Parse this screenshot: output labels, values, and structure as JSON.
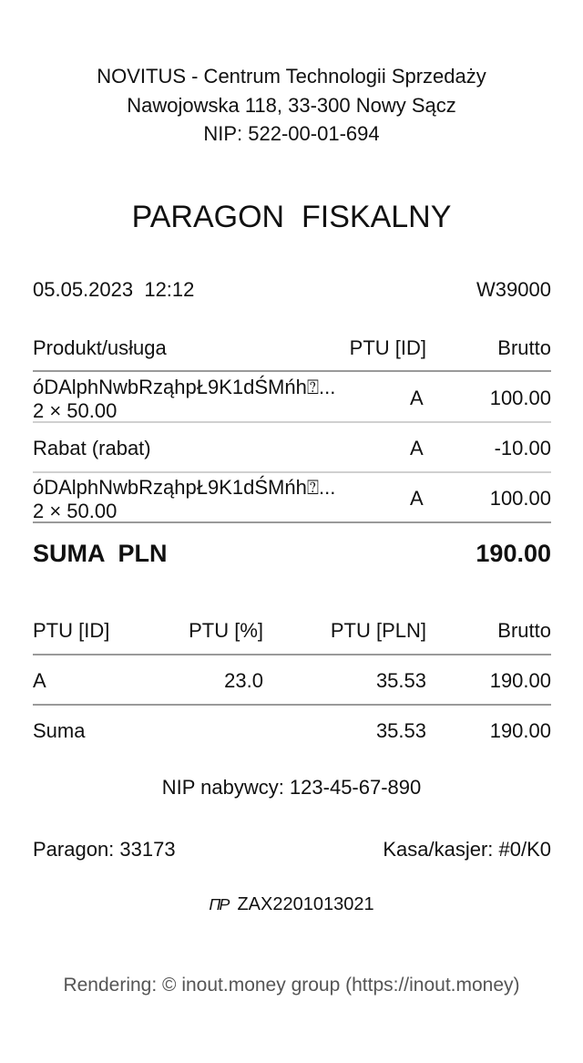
{
  "header": {
    "line1": "NOVITUS - Centrum Technologii Sprzedaży",
    "line2": "Nawojowska 118, 33-300 Nowy Sącz",
    "line3": "NIP: 522-00-01-694"
  },
  "title": "PARAGON  FISKALNY",
  "datetime": "05.05.2023  12:12",
  "receipt_code": "W39000",
  "items_table": {
    "headers": [
      "Produkt/usługa",
      "PTU [ID]",
      "Brutto"
    ],
    "rows": [
      {
        "name": "óDAlphNwbRząhpŁ9K1dŚMńh⍰...",
        "qty": "2 × 50.00",
        "ptu": "A",
        "brutto": "100.00"
      },
      {
        "name": "Rabat (rabat)",
        "ptu": "A",
        "brutto": "-10.00"
      },
      {
        "name": "óDAlphNwbRząhpŁ9K1dŚMńh⍰...",
        "qty": "2 × 50.00",
        "ptu": "A",
        "brutto": "100.00"
      }
    ]
  },
  "total": {
    "label": "SUMA  PLN",
    "value": "190.00"
  },
  "tax_table": {
    "headers": [
      "PTU [ID]",
      "PTU [%]",
      "PTU [PLN]",
      "Brutto"
    ],
    "rows": [
      [
        "A",
        "23.0",
        "35.53",
        "190.00"
      ],
      [
        "Suma",
        "",
        "35.53",
        "190.00"
      ]
    ]
  },
  "buyer_nip": "NIP nabywcy: 123-45-67-890",
  "receipt_number": "Paragon: 33173",
  "cashier": "Kasa/kasjer: #0/K0",
  "fiscal_logo": "PL-fiscal-mark-icon",
  "device_number": "ZAX2201013021",
  "footer": "Rendering: © inout.money group (https://inout.money)"
}
